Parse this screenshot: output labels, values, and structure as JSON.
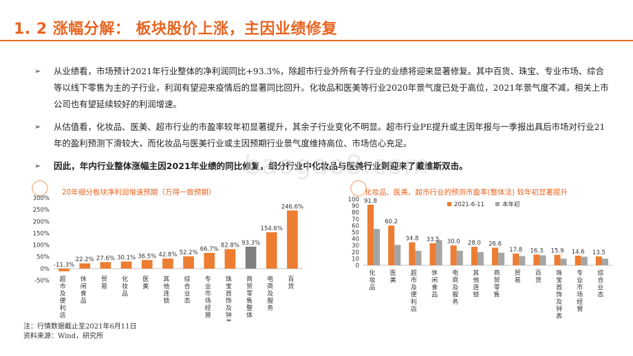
{
  "title": "1. 2  涨幅分解：  板块股价上涨，主因业绩修复",
  "bullets": [
    {
      "mark": "➢",
      "text": "从业绩看，市场预计2021年行业整体的净利润同比+93.3%，除超市行业外所有子行业的业绩将迎来显著修复。其中百货、珠宝、专业市场、综合等以线下零售为主的子行业，利润有望迎来疫情后的显著同比回升。化妆品和医美等行业2020年景气度已处于高位，2021年景气度不减，相关上市公司也有望延续较好的利润增速。"
    },
    {
      "mark": "➢",
      "text": "从估值看，化妆品、医美、超市行业的市盈率较年初显著提升，其余子行业变化不明显。超市行业PE提升或主因年报与一季报出具后市场对行业21年的盈利预测下滑较大，而化妆品与医美行业或主因预期行业景气度维持高位、市场信心充足。"
    },
    {
      "mark": "➢",
      "text": "因此，年内行业整体涨幅主因2021年业绩的同比修复，细分行业中化妆品与医美行业则迎来了戴维斯双击。"
    }
  ],
  "watermark": "baogao8.com",
  "note": "注：行情数据截止至2021年6月11日",
  "source": "资料来源：Wind，研究所",
  "colors": {
    "accent": "#e8641f",
    "bar_orange": "#ed7d31",
    "bar_gray": "#a5a5a5",
    "bar_dark": "#7f7f7f"
  },
  "chart_data": [
    {
      "type": "bar",
      "title": "20年细分板块净利润增速预期（万得一致预期）",
      "categories": [
        "超市及便利店",
        "休闲食品",
        "贸易",
        "化妆品",
        "医美",
        "其他连锁",
        "综合业态",
        "专业市场经营",
        "珠宝首饰及钟表",
        "商贸零售整体",
        "电商及服务",
        "百货"
      ],
      "values": [
        -11.3,
        22.2,
        27.6,
        30.1,
        36.5,
        42.8,
        52.2,
        66.7,
        82.8,
        93.3,
        154.6,
        246.6
      ],
      "value_labels": [
        "-11.3%",
        "22.2%",
        "27.6%",
        "30.1%",
        "36.5%",
        "42.8%",
        "52.2%",
        "66.7%",
        "82.8%",
        "93.3%",
        "154.6%",
        "246.6%"
      ],
      "highlight_category": "商贸零售整体",
      "yticks": [
        "-50%",
        "0%",
        "50%",
        "100%",
        "150%",
        "200%",
        "250%",
        "300%"
      ],
      "ylim": [
        -50,
        300
      ],
      "grid": false,
      "xlabel": "",
      "ylabel": ""
    },
    {
      "type": "bar",
      "title": "化妆品、医美、超市行业的预测市盈率(整体法) 较年初显著提升",
      "categories": [
        "化妆品",
        "医美",
        "超市及便利店",
        "休闲食品",
        "电商及服务",
        "其他连锁",
        "商贸零售",
        "贸易",
        "百货",
        "珠宝首饰及钟表",
        "专业市场经营",
        "综合业态"
      ],
      "series": [
        {
          "name": "2021-6-11",
          "values": [
            91.8,
            60.2,
            34.8,
            33.5,
            30.0,
            28.0,
            26.6,
            17.8,
            16.3,
            15.9,
            14.6,
            13.5
          ]
        },
        {
          "name": "本年初",
          "values": [
            55.0,
            31.0,
            22.0,
            38.0,
            22.0,
            20.0,
            19.0,
            14.0,
            15.0,
            10.0,
            13.0,
            10.0
          ]
        }
      ],
      "value_labels": [
        "91.8",
        "60.2",
        "34.8",
        "33.5",
        "30.0",
        "28.0",
        "26.6",
        "17.8",
        "16.3",
        "15.9",
        "14.6",
        "13.5"
      ],
      "yticks": [
        "0",
        "10",
        "20",
        "30",
        "40",
        "50",
        "60",
        "70",
        "80",
        "90",
        "100"
      ],
      "ylim": [
        0,
        100
      ],
      "legend": "top-right",
      "grid": false,
      "xlabel": "",
      "ylabel": ""
    }
  ]
}
